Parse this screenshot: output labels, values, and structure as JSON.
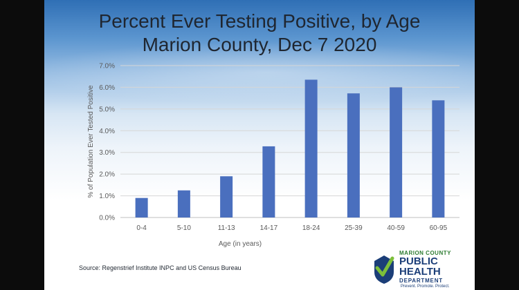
{
  "title_line1": "Percent Ever Testing Positive, by Age",
  "title_line2": "Marion County, Dec 7 2020",
  "source": "Source: Regenstrief Institute INPC and US Census Bureau",
  "logo": {
    "county": "MARION COUNTY",
    "public": "PUBLIC",
    "health": "HEALTH",
    "department": "DEPARTMENT",
    "motto": "Prevent. Promote. Protect."
  },
  "colors": {
    "bar": "#4a6fbe",
    "grid": "#d6d6d6",
    "text": "#595959"
  },
  "chart_data": {
    "type": "bar",
    "title": "Percent Ever Testing Positive, by Age",
    "subtitle": "Marion County, Dec 7 2020",
    "xlabel": "Age (in years)",
    "ylabel": "% of Population Ever Tested Positive",
    "categories": [
      "0-4",
      "5-10",
      "11-13",
      "14-17",
      "18-24",
      "25-39",
      "40-59",
      "60-95"
    ],
    "values": [
      0.9,
      1.25,
      1.9,
      3.28,
      6.35,
      5.72,
      6.0,
      5.4
    ],
    "ylim": [
      0,
      7
    ],
    "yticks": [
      0,
      1,
      2,
      3,
      4,
      5,
      6,
      7
    ],
    "ytick_labels": [
      "0.0%",
      "1.0%",
      "2.0%",
      "3.0%",
      "4.0%",
      "5.0%",
      "6.0%",
      "7.0%"
    ],
    "grid": true,
    "legend": "none"
  }
}
